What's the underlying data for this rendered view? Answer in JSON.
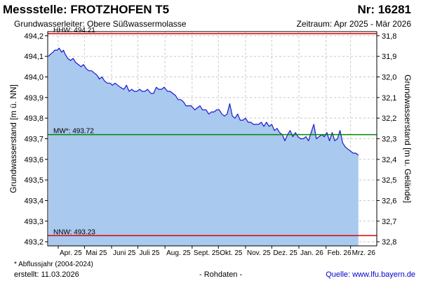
{
  "header": {
    "title": "Messstelle: FROTZHOFEN T5",
    "station_nr": "Nr: 16281",
    "aquifer": "Grundwasserleiter:   Obere Süßwassermolasse",
    "period": "Zeitraum: Apr 2025 - Mär 2026"
  },
  "footer": {
    "note": "* Abflussjahr (2004-2024)",
    "created": "erstellt:  11.03.2026",
    "raw": "- Rohdaten -",
    "source": "Quelle: www.lfu.bayern.de"
  },
  "colors": {
    "area": "#a9c9ef",
    "line": "#1a1acc",
    "hhw": "#dd0000",
    "mw": "#008800",
    "nnw": "#dd0000",
    "grid": "#c8c8c8"
  },
  "chart_data": {
    "type": "area",
    "ylabel": "Grundwasserstand [m ü. NN]",
    "y2label": "Grundwasserstand [m u. Gelände]",
    "ylim": [
      493.18,
      494.22
    ],
    "yticks": [
      494.2,
      494.1,
      494.0,
      493.9,
      493.8,
      493.7,
      493.6,
      493.5,
      493.4,
      493.3,
      493.2
    ],
    "ytick_labels": [
      "494,2",
      "494,1",
      "494,0",
      "493,9",
      "493,8",
      "493,7",
      "493,6",
      "493,5",
      "493,4",
      "493,3",
      "493,2"
    ],
    "y2ticks": [
      31.8,
      31.9,
      32.0,
      32.1,
      32.2,
      32.3,
      32.4,
      32.5,
      32.6,
      32.7,
      32.8
    ],
    "y2tick_labels": [
      "31,8",
      "31,9",
      "32,0",
      "32,1",
      "32,2",
      "32,3",
      "32,4",
      "32,5",
      "32,6",
      "32,7",
      "32,8"
    ],
    "xlim": [
      "2025-03-20",
      "2026-03-31"
    ],
    "months": [
      "2025-04-01",
      "2025-05-01",
      "2025-06-01",
      "2025-07-01",
      "2025-08-01",
      "2025-09-01",
      "2025-10-01",
      "2025-11-01",
      "2025-12-01",
      "2026-01-01",
      "2026-02-01",
      "2026-03-01"
    ],
    "month_labels": [
      "Apr. 25",
      "Mai 25",
      "Juni 25",
      "Juli 25",
      "Aug. 25",
      "Sept. 25",
      "Okt. 25",
      "Nov. 25",
      "Dez. 25",
      "Jan. 26",
      "Feb. 26",
      "Mrz. 26"
    ],
    "reference_lines": [
      {
        "key": "hhw",
        "label": "HHW: 494.21",
        "value": 494.21
      },
      {
        "key": "mw",
        "label": "MW*: 493.72",
        "value": 493.72
      },
      {
        "key": "nnw",
        "label": "NNW: 493.23",
        "value": 493.23
      }
    ],
    "x": [
      "2025-03-21",
      "2025-03-23",
      "2025-03-26",
      "2025-03-28",
      "2025-03-31",
      "2025-04-02",
      "2025-04-05",
      "2025-04-07",
      "2025-04-09",
      "2025-04-12",
      "2025-04-15",
      "2025-04-18",
      "2025-04-21",
      "2025-04-24",
      "2025-04-27",
      "2025-04-30",
      "2025-05-03",
      "2025-05-06",
      "2025-05-09",
      "2025-05-12",
      "2025-05-15",
      "2025-05-18",
      "2025-05-21",
      "2025-05-24",
      "2025-05-27",
      "2025-05-30",
      "2025-06-02",
      "2025-06-05",
      "2025-06-08",
      "2025-06-11",
      "2025-06-15",
      "2025-06-18",
      "2025-06-21",
      "2025-06-24",
      "2025-06-27",
      "2025-06-30",
      "2025-07-03",
      "2025-07-06",
      "2025-07-09",
      "2025-07-12",
      "2025-07-16",
      "2025-07-19",
      "2025-07-22",
      "2025-07-25",
      "2025-07-28",
      "2025-07-31",
      "2025-08-04",
      "2025-08-07",
      "2025-08-10",
      "2025-08-13",
      "2025-08-16",
      "2025-08-19",
      "2025-08-22",
      "2025-08-25",
      "2025-08-28",
      "2025-08-31",
      "2025-09-04",
      "2025-09-07",
      "2025-09-10",
      "2025-09-13",
      "2025-09-17",
      "2025-09-20",
      "2025-09-23",
      "2025-09-26",
      "2025-09-29",
      "2025-10-02",
      "2025-10-05",
      "2025-10-08",
      "2025-10-11",
      "2025-10-14",
      "2025-10-17",
      "2025-10-20",
      "2025-10-23",
      "2025-10-26",
      "2025-10-29",
      "2025-11-01",
      "2025-11-04",
      "2025-11-07",
      "2025-11-10",
      "2025-11-13",
      "2025-11-16",
      "2025-11-19",
      "2025-11-22",
      "2025-11-25",
      "2025-11-28",
      "2025-12-01",
      "2025-12-04",
      "2025-12-07",
      "2025-12-10",
      "2025-12-13",
      "2025-12-16",
      "2025-12-19",
      "2025-12-22",
      "2025-12-25",
      "2025-12-28",
      "2025-12-31",
      "2026-01-03",
      "2026-01-06",
      "2026-01-09",
      "2026-01-12",
      "2026-01-15",
      "2026-01-18",
      "2026-01-21",
      "2026-01-24",
      "2026-01-27",
      "2026-01-30",
      "2026-02-02",
      "2026-02-05",
      "2026-02-08",
      "2026-02-11",
      "2026-02-14",
      "2026-02-17",
      "2026-02-20",
      "2026-02-23",
      "2026-02-26",
      "2026-03-01",
      "2026-03-04",
      "2026-03-07",
      "2026-03-10"
    ],
    "values": [
      494.1,
      494.11,
      494.12,
      494.13,
      494.13,
      494.14,
      494.12,
      494.13,
      494.11,
      494.09,
      494.08,
      494.09,
      494.07,
      494.06,
      494.05,
      494.06,
      494.04,
      494.03,
      494.03,
      494.02,
      494.01,
      493.99,
      494.0,
      493.98,
      493.97,
      493.97,
      493.96,
      493.97,
      493.96,
      493.95,
      493.94,
      493.96,
      493.93,
      493.94,
      493.93,
      493.93,
      493.94,
      493.93,
      493.93,
      493.94,
      493.92,
      493.92,
      493.95,
      493.94,
      493.94,
      493.95,
      493.93,
      493.93,
      493.92,
      493.91,
      493.89,
      493.89,
      493.88,
      493.86,
      493.86,
      493.86,
      493.84,
      493.85,
      493.86,
      493.84,
      493.84,
      493.82,
      493.83,
      493.83,
      493.84,
      493.84,
      493.82,
      493.81,
      493.82,
      493.87,
      493.81,
      493.8,
      493.82,
      493.79,
      493.79,
      493.8,
      493.78,
      493.78,
      493.77,
      493.77,
      493.77,
      493.78,
      493.76,
      493.78,
      493.76,
      493.77,
      493.74,
      493.75,
      493.73,
      493.72,
      493.69,
      493.72,
      493.74,
      493.71,
      493.73,
      493.71,
      493.7,
      493.7,
      493.71,
      493.69,
      493.73,
      493.77,
      493.7,
      493.71,
      493.72,
      493.71,
      493.73,
      493.69,
      493.73,
      493.69,
      493.7,
      493.74,
      493.68,
      493.66,
      493.65,
      493.64,
      493.63,
      493.63,
      493.62
    ]
  }
}
